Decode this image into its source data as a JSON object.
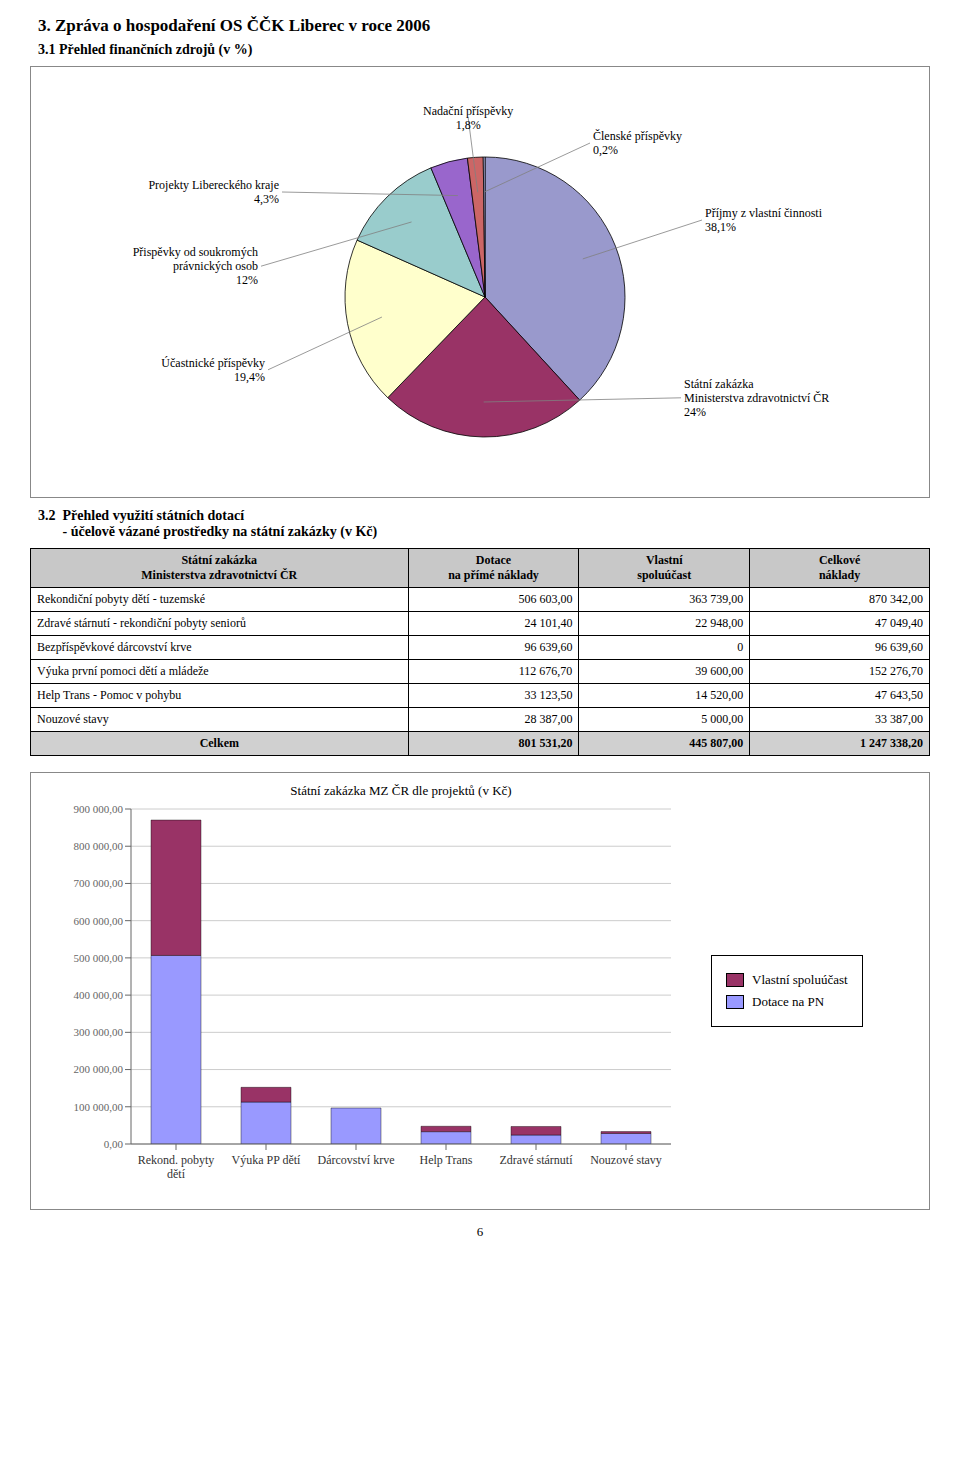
{
  "chart_data": [
    {
      "type": "pie",
      "title": "3.   Zpráva o hospodaření OS ČČK Liberec v roce 2006",
      "subtitle": "3.1  Přehled finančních zdrojů (v %)",
      "categories": [
        "Příjmy z vlastní činnosti",
        "Státní zakázka\nMinisterstva zdravotnictví ČR",
        "Účastnické příspěvky",
        "Přispěvky od soukromých\nprávnických osob",
        "Projekty Libereckého kraje",
        "Nadační příspěvky",
        "Členské příspěvky"
      ],
      "values": [
        38.1,
        24.0,
        19.4,
        12.0,
        4.3,
        1.8,
        0.2
      ],
      "value_labels": [
        "38,1%",
        "24%",
        "19,4%",
        "12%",
        "4,3%",
        "1,8%",
        "0,2%"
      ],
      "colors": [
        "#9999cc",
        "#993366",
        "#ffffcc",
        "#99cccc",
        "#9966cc",
        "#cc6666",
        "#ccccff"
      ]
    },
    {
      "type": "table",
      "title": "3.2  Přehled využití státních dotací",
      "subtitle": "       - účelově vázané prostředky na státní zakázky (v Kč)",
      "xlabel": "Státní zakázka\nMinisterstva zdravotnictví ČR",
      "categories": [
        "Rekondiční pobyty dětí - tuzemské",
        "Zdravé stárnutí - rekondiční pobyty seniorů",
        "Bezpříspěvkové dárcovství krve",
        "Výuka první pomoci dětí a mládeže",
        "Help Trans - Pomoc v pohybu",
        "Nouzové stavy",
        "Celkem"
      ],
      "series": [
        {
          "name": "Dotace\nna přímé náklady",
          "values": [
            506603.0,
            24101.4,
            96639.6,
            112676.7,
            33123.5,
            28387.0,
            801531.2
          ],
          "value_labels": [
            "506 603,00",
            "24 101,40",
            "96 639,60",
            "112 676,70",
            "33 123,50",
            "28 387,00",
            "801 531,20"
          ]
        },
        {
          "name": "Vlastní\nspoluúčast",
          "values": [
            363739.0,
            22948.0,
            0,
            39600.0,
            14520.0,
            5000.0,
            445807.0
          ],
          "value_labels": [
            "363 739,00",
            "22 948,00",
            "0",
            "39 600,00",
            "14 520,00",
            "5 000,00",
            "445 807,00"
          ]
        },
        {
          "name": "Celkové\nnáklady",
          "values": [
            870342.0,
            47049.4,
            96639.6,
            152276.7,
            47643.5,
            33387.0,
            1247338.2
          ],
          "value_labels": [
            "870 342,00",
            "47 049,40",
            "96 639,60",
            "152 276,70",
            "47 643,50",
            "33 387,00",
            "1 247 338,20"
          ]
        }
      ]
    },
    {
      "type": "bar",
      "stacked": true,
      "title": "Státní zakázka MZ ČR dle projektů (v Kč)",
      "categories": [
        "Rekond. pobyty\ndětí",
        "Výuka PP dětí",
        "Dárcovství krve",
        "Help Trans",
        "Zdravé stárnutí",
        "Nouzové stavy"
      ],
      "series": [
        {
          "name": "Dotace na PN",
          "color": "#9999ff",
          "values": [
            506603.0,
            112676.7,
            96639.6,
            33123.5,
            24101.4,
            28387.0
          ]
        },
        {
          "name": "Vlastní spoluúčast",
          "color": "#993366",
          "values": [
            363739.0,
            39600.0,
            0,
            14520.0,
            22948.0,
            5000.0
          ]
        }
      ],
      "ylim": [
        0,
        900000
      ],
      "yticks": [
        {
          "value": 0,
          "label": "0,00"
        },
        {
          "value": 100000,
          "label": "100 000,00"
        },
        {
          "value": 200000,
          "label": "200 000,00"
        },
        {
          "value": 300000,
          "label": "300 000,00"
        },
        {
          "value": 400000,
          "label": "400 000,00"
        },
        {
          "value": 500000,
          "label": "500 000,00"
        },
        {
          "value": 600000,
          "label": "600 000,00"
        },
        {
          "value": 700000,
          "label": "700 000,00"
        },
        {
          "value": 800000,
          "label": "800 000,00"
        },
        {
          "value": 900000,
          "label": "900 000,00"
        }
      ],
      "grid": true,
      "legend": "right",
      "annotations": [
        {
          "text": "6"
        }
      ]
    }
  ]
}
